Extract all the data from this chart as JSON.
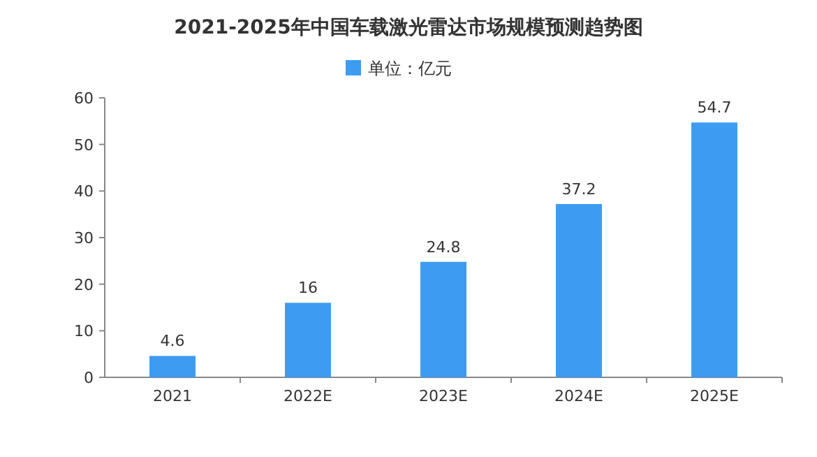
{
  "chart_data": {
    "type": "bar",
    "title": "2021-2025年中国车载激光雷达市场规模预测趋势图",
    "categories": [
      "2021",
      "2022E",
      "2023E",
      "2024E",
      "2025E"
    ],
    "series": [
      {
        "name": "单位：亿元",
        "color": "#3d9cf0",
        "values": [
          4.6,
          16,
          24.8,
          37.2,
          54.7
        ]
      }
    ],
    "ylim": [
      0,
      60
    ],
    "yticks": [
      0,
      10,
      20,
      30,
      40,
      50,
      60
    ],
    "grid": false,
    "legend": "top",
    "data_labels": true
  }
}
